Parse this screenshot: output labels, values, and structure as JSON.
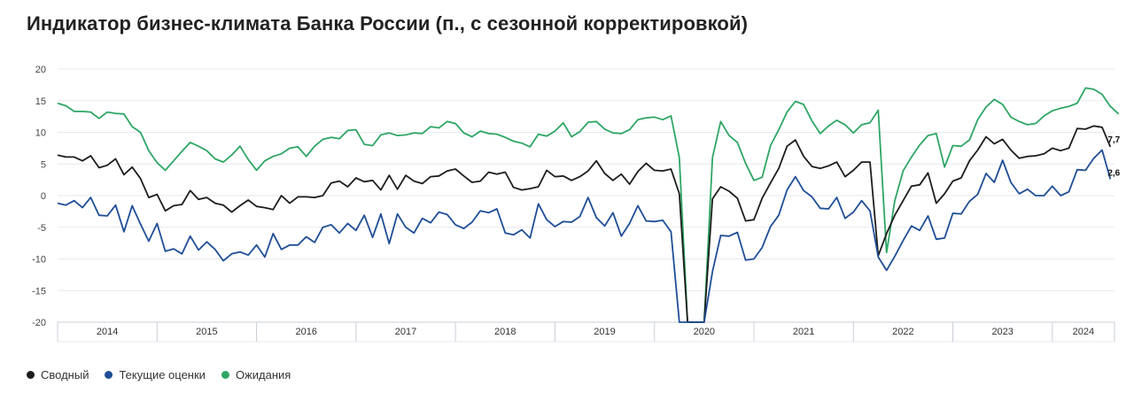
{
  "page": {
    "title": "Индикатор бизнес-климата Банка России (п., с сезонной корректировкой)"
  },
  "colors": {
    "composite": "#1d1d1b",
    "current": "#1f4e96",
    "expectations": "#2ea664",
    "grid": "#e6e9ee",
    "axis": "#c9ced6"
  },
  "chart_data": {
    "type": "line",
    "title": "Индикатор бизнес-климата Банка России (п., с сезонной корректировкой)",
    "ylim": [
      -20,
      20
    ],
    "yticks": [
      -20,
      -15,
      -10,
      -5,
      0,
      5,
      10,
      15,
      20
    ],
    "years": [
      "2014",
      "2015",
      "2016",
      "2017",
      "2018",
      "2019",
      "2020",
      "2021",
      "2022",
      "2023",
      "2024"
    ],
    "x_start": "2014-01",
    "x_end": "2024-03",
    "grid": true,
    "legend_position": "bottom-left",
    "annotations": [
      {
        "series": "Сводный",
        "label": "7,7"
      },
      {
        "series": "Текущие оценки",
        "label": "2,6"
      }
    ],
    "series": [
      {
        "name": "Сводный",
        "values": [
          6.4,
          6.1,
          6.1,
          5.5,
          6.3,
          4.4,
          4.8,
          5.8,
          3.3,
          4.5,
          2.7,
          -0.3,
          0.2,
          -2.4,
          -1.6,
          -1.4,
          0.8,
          -0.6,
          -0.3,
          -1.2,
          -1.5,
          -2.6,
          -1.6,
          -0.7,
          -1.7,
          -1.9,
          -2.2,
          0.0,
          -1.2,
          -0.2,
          -0.2,
          -0.3,
          0.0,
          2.0,
          2.3,
          1.4,
          2.8,
          2.2,
          2.4,
          0.9,
          3.2,
          1.0,
          3.2,
          2.3,
          1.9,
          3.0,
          3.1,
          3.9,
          4.2,
          3.1,
          2.1,
          2.3,
          3.7,
          3.4,
          3.7,
          1.3,
          0.9,
          1.1,
          1.4,
          4.0,
          3.0,
          3.1,
          2.4,
          3.0,
          3.9,
          5.5,
          3.5,
          2.4,
          3.4,
          1.8,
          3.8,
          5.1,
          4.0,
          3.9,
          4.2,
          0.3,
          -20.0,
          -20.0,
          -20.0,
          -0.5,
          1.4,
          0.7,
          -0.4,
          -4.0,
          -3.8,
          -0.4,
          2.0,
          4.3,
          7.8,
          8.8,
          6.2,
          4.6,
          4.3,
          4.7,
          5.3,
          3.0,
          4.0,
          5.3,
          5.3,
          -9.5,
          -6.0,
          -3.1,
          -0.8,
          1.5,
          1.7,
          3.6,
          -1.2,
          0.3,
          2.3,
          2.8,
          5.5,
          7.2,
          9.3,
          8.2,
          8.9,
          7.2,
          5.9,
          6.2,
          6.3,
          6.6,
          7.5,
          7.1,
          7.5,
          10.6,
          10.5,
          11.0,
          10.8,
          7.7
        ]
      },
      {
        "name": "Текущие оценки",
        "values": [
          -1.2,
          -1.5,
          -0.8,
          -1.9,
          -0.3,
          -3.1,
          -3.2,
          -1.5,
          -5.7,
          -1.6,
          -4.5,
          -7.2,
          -4.4,
          -8.8,
          -8.4,
          -9.2,
          -6.4,
          -8.6,
          -7.3,
          -8.5,
          -10.3,
          -9.2,
          -8.9,
          -9.4,
          -7.8,
          -9.7,
          -6.0,
          -8.5,
          -7.8,
          -7.8,
          -6.5,
          -7.4,
          -5.0,
          -4.6,
          -5.9,
          -4.4,
          -5.5,
          -3.1,
          -6.6,
          -2.9,
          -7.6,
          -2.9,
          -5.0,
          -5.9,
          -3.6,
          -4.3,
          -2.6,
          -3.0,
          -4.6,
          -5.2,
          -4.2,
          -2.4,
          -2.7,
          -2.1,
          -5.9,
          -6.2,
          -5.4,
          -6.7,
          -1.3,
          -3.8,
          -4.9,
          -4.1,
          -4.2,
          -3.3,
          -0.3,
          -3.5,
          -4.8,
          -2.7,
          -6.4,
          -4.4,
          -1.6,
          -4.0,
          -4.1,
          -3.9,
          -5.7,
          -20.0,
          -20.0,
          -20.0,
          -20.0,
          -12.0,
          -6.3,
          -6.4,
          -5.8,
          -10.2,
          -10.0,
          -8.2,
          -4.9,
          -3.1,
          0.9,
          3.0,
          0.8,
          -0.2,
          -2.0,
          -2.1,
          -0.3,
          -3.6,
          -2.6,
          -0.8,
          -2.4,
          -9.7,
          -11.8,
          -9.6,
          -7.1,
          -4.8,
          -5.5,
          -3.2,
          -6.9,
          -6.7,
          -2.8,
          -2.9,
          -0.9,
          0.2,
          3.5,
          2.1,
          5.6,
          2.1,
          0.3,
          1.0,
          0.0,
          0.0,
          1.5,
          0.0,
          0.6,
          4.1,
          4.0,
          5.9,
          7.2,
          2.6
        ]
      },
      {
        "name": "Ожидания",
        "values": [
          14.6,
          14.2,
          13.3,
          13.3,
          13.2,
          12.2,
          13.2,
          13.0,
          12.9,
          10.9,
          10.0,
          7.1,
          5.2,
          4.0,
          5.5,
          7.0,
          8.4,
          7.8,
          7.1,
          5.8,
          5.3,
          6.4,
          7.8,
          5.7,
          4.0,
          5.5,
          6.2,
          6.6,
          7.5,
          7.7,
          6.2,
          7.8,
          8.9,
          9.2,
          9.0,
          10.3,
          10.4,
          8.1,
          7.9,
          9.6,
          9.9,
          9.5,
          9.6,
          9.9,
          9.8,
          10.9,
          10.7,
          11.7,
          11.4,
          9.9,
          9.3,
          10.2,
          9.8,
          9.7,
          9.2,
          8.6,
          8.3,
          7.7,
          9.7,
          9.4,
          10.2,
          11.5,
          9.3,
          10.1,
          11.6,
          11.7,
          10.5,
          9.9,
          9.8,
          10.4,
          12.0,
          12.3,
          12.4,
          12.0,
          12.6,
          6.0,
          -20.0,
          -20.0,
          -20.0,
          6.0,
          11.7,
          9.5,
          8.4,
          5.1,
          2.4,
          2.9,
          7.9,
          10.4,
          13.2,
          14.9,
          14.4,
          11.8,
          9.8,
          11.0,
          11.9,
          11.2,
          9.9,
          11.2,
          11.5,
          13.5,
          -9.0,
          -0.8,
          3.9,
          6.1,
          8.0,
          9.5,
          9.8,
          4.5,
          7.9,
          7.8,
          8.8,
          12.0,
          14.0,
          15.2,
          14.4,
          12.4,
          11.7,
          11.2,
          11.4,
          12.6,
          13.4,
          13.8,
          14.1,
          14.6,
          17.0,
          16.8,
          16.0,
          14.1,
          12.9
        ]
      }
    ]
  }
}
